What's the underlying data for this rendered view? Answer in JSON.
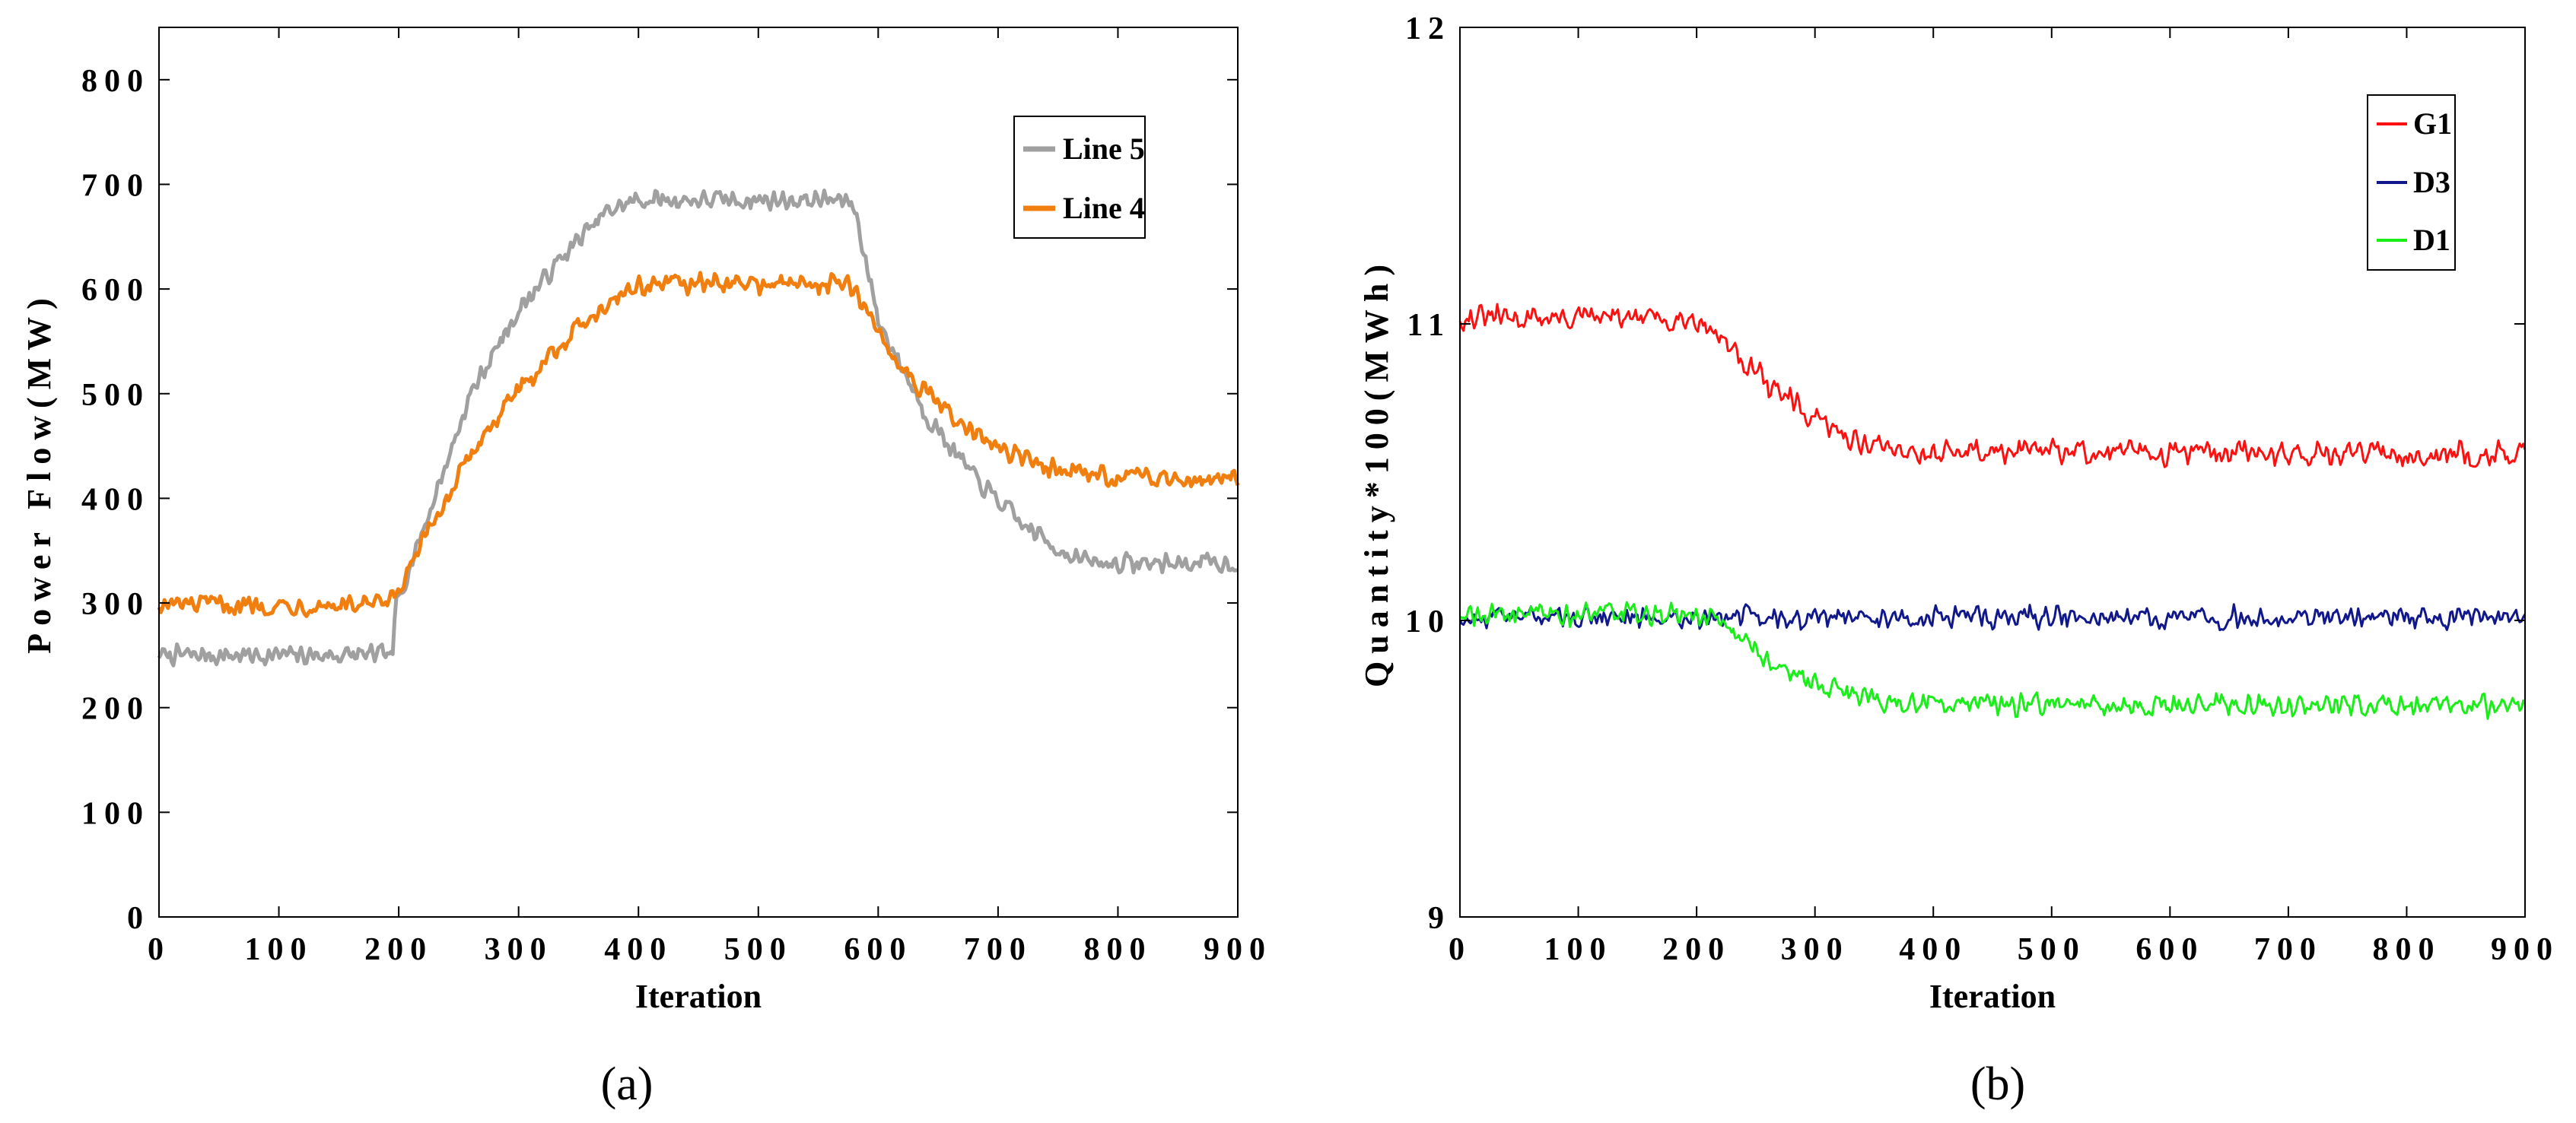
{
  "chart_data": [
    {
      "type": "line",
      "panel_label": "(a)",
      "xlabel": "Iteration",
      "ylabel": "Power Flow(MW)",
      "xlim": [
        0,
        900
      ],
      "ylim": [
        0,
        850
      ],
      "xticks": [
        "0",
        "100",
        "200",
        "300",
        "400",
        "500",
        "600",
        "700",
        "800",
        "900"
      ],
      "yticks": [
        "0",
        "100",
        "200",
        "300",
        "400",
        "500",
        "600",
        "700",
        "800"
      ],
      "legend_position": "top-right",
      "series": [
        {
          "name": "Line 5",
          "color": "#a0a0a0",
          "noise": 11,
          "keypoints": [
            [
              0,
              250
            ],
            [
              195,
              250
            ],
            [
              198,
              300
            ],
            [
              225,
              385
            ],
            [
              260,
              500
            ],
            [
              300,
              580
            ],
            [
              340,
              635
            ],
            [
              375,
              675
            ],
            [
              400,
              685
            ],
            [
              570,
              685
            ],
            [
              580,
              680
            ],
            [
              600,
              570
            ],
            [
              640,
              480
            ],
            [
              680,
              420
            ],
            [
              720,
              375
            ],
            [
              760,
              345
            ],
            [
              780,
              338
            ],
            [
              900,
              338
            ]
          ]
        },
        {
          "name": "Line 4",
          "color": "#f07f10",
          "noise": 11,
          "keypoints": [
            [
              0,
              298
            ],
            [
              190,
              298
            ],
            [
              200,
              310
            ],
            [
              230,
              380
            ],
            [
              270,
              460
            ],
            [
              320,
              530
            ],
            [
              360,
              575
            ],
            [
              390,
              600
            ],
            [
              410,
              605
            ],
            [
              570,
              605
            ],
            [
              580,
              600
            ],
            [
              610,
              540
            ],
            [
              640,
              500
            ],
            [
              680,
              460
            ],
            [
              720,
              438
            ],
            [
              760,
              425
            ],
            [
              800,
              420
            ],
            [
              900,
              420
            ]
          ]
        }
      ]
    },
    {
      "type": "line",
      "panel_label": "(b)",
      "xlabel": "Iteration",
      "ylabel": "Quantity*100(MWh)",
      "xlim": [
        0,
        900
      ],
      "ylim": [
        9,
        12
      ],
      "xticks": [
        "0",
        "100",
        "200",
        "300",
        "400",
        "500",
        "600",
        "700",
        "800",
        "900"
      ],
      "yticks": [
        "9",
        "10",
        "11",
        "12"
      ],
      "legend_position": "top-right",
      "series": [
        {
          "name": "G1",
          "color": "#ff1010",
          "noise": 0.05,
          "keypoints": [
            [
              0,
              11.02
            ],
            [
              200,
              11.02
            ],
            [
              230,
              10.92
            ],
            [
              260,
              10.8
            ],
            [
              300,
              10.67
            ],
            [
              340,
              10.6
            ],
            [
              380,
              10.57
            ],
            [
              900,
              10.56
            ]
          ]
        },
        {
          "name": "D3",
          "color": "#10188c",
          "noise": 0.045,
          "keypoints": [
            [
              0,
              10.01
            ],
            [
              900,
              10.01
            ]
          ]
        },
        {
          "name": "D1",
          "color": "#19ee19",
          "noise": 0.045,
          "keypoints": [
            [
              0,
              10.02
            ],
            [
              200,
              10.02
            ],
            [
              230,
              9.96
            ],
            [
              260,
              9.86
            ],
            [
              300,
              9.78
            ],
            [
              340,
              9.74
            ],
            [
              380,
              9.72
            ],
            [
              900,
              9.71
            ]
          ]
        }
      ]
    }
  ]
}
